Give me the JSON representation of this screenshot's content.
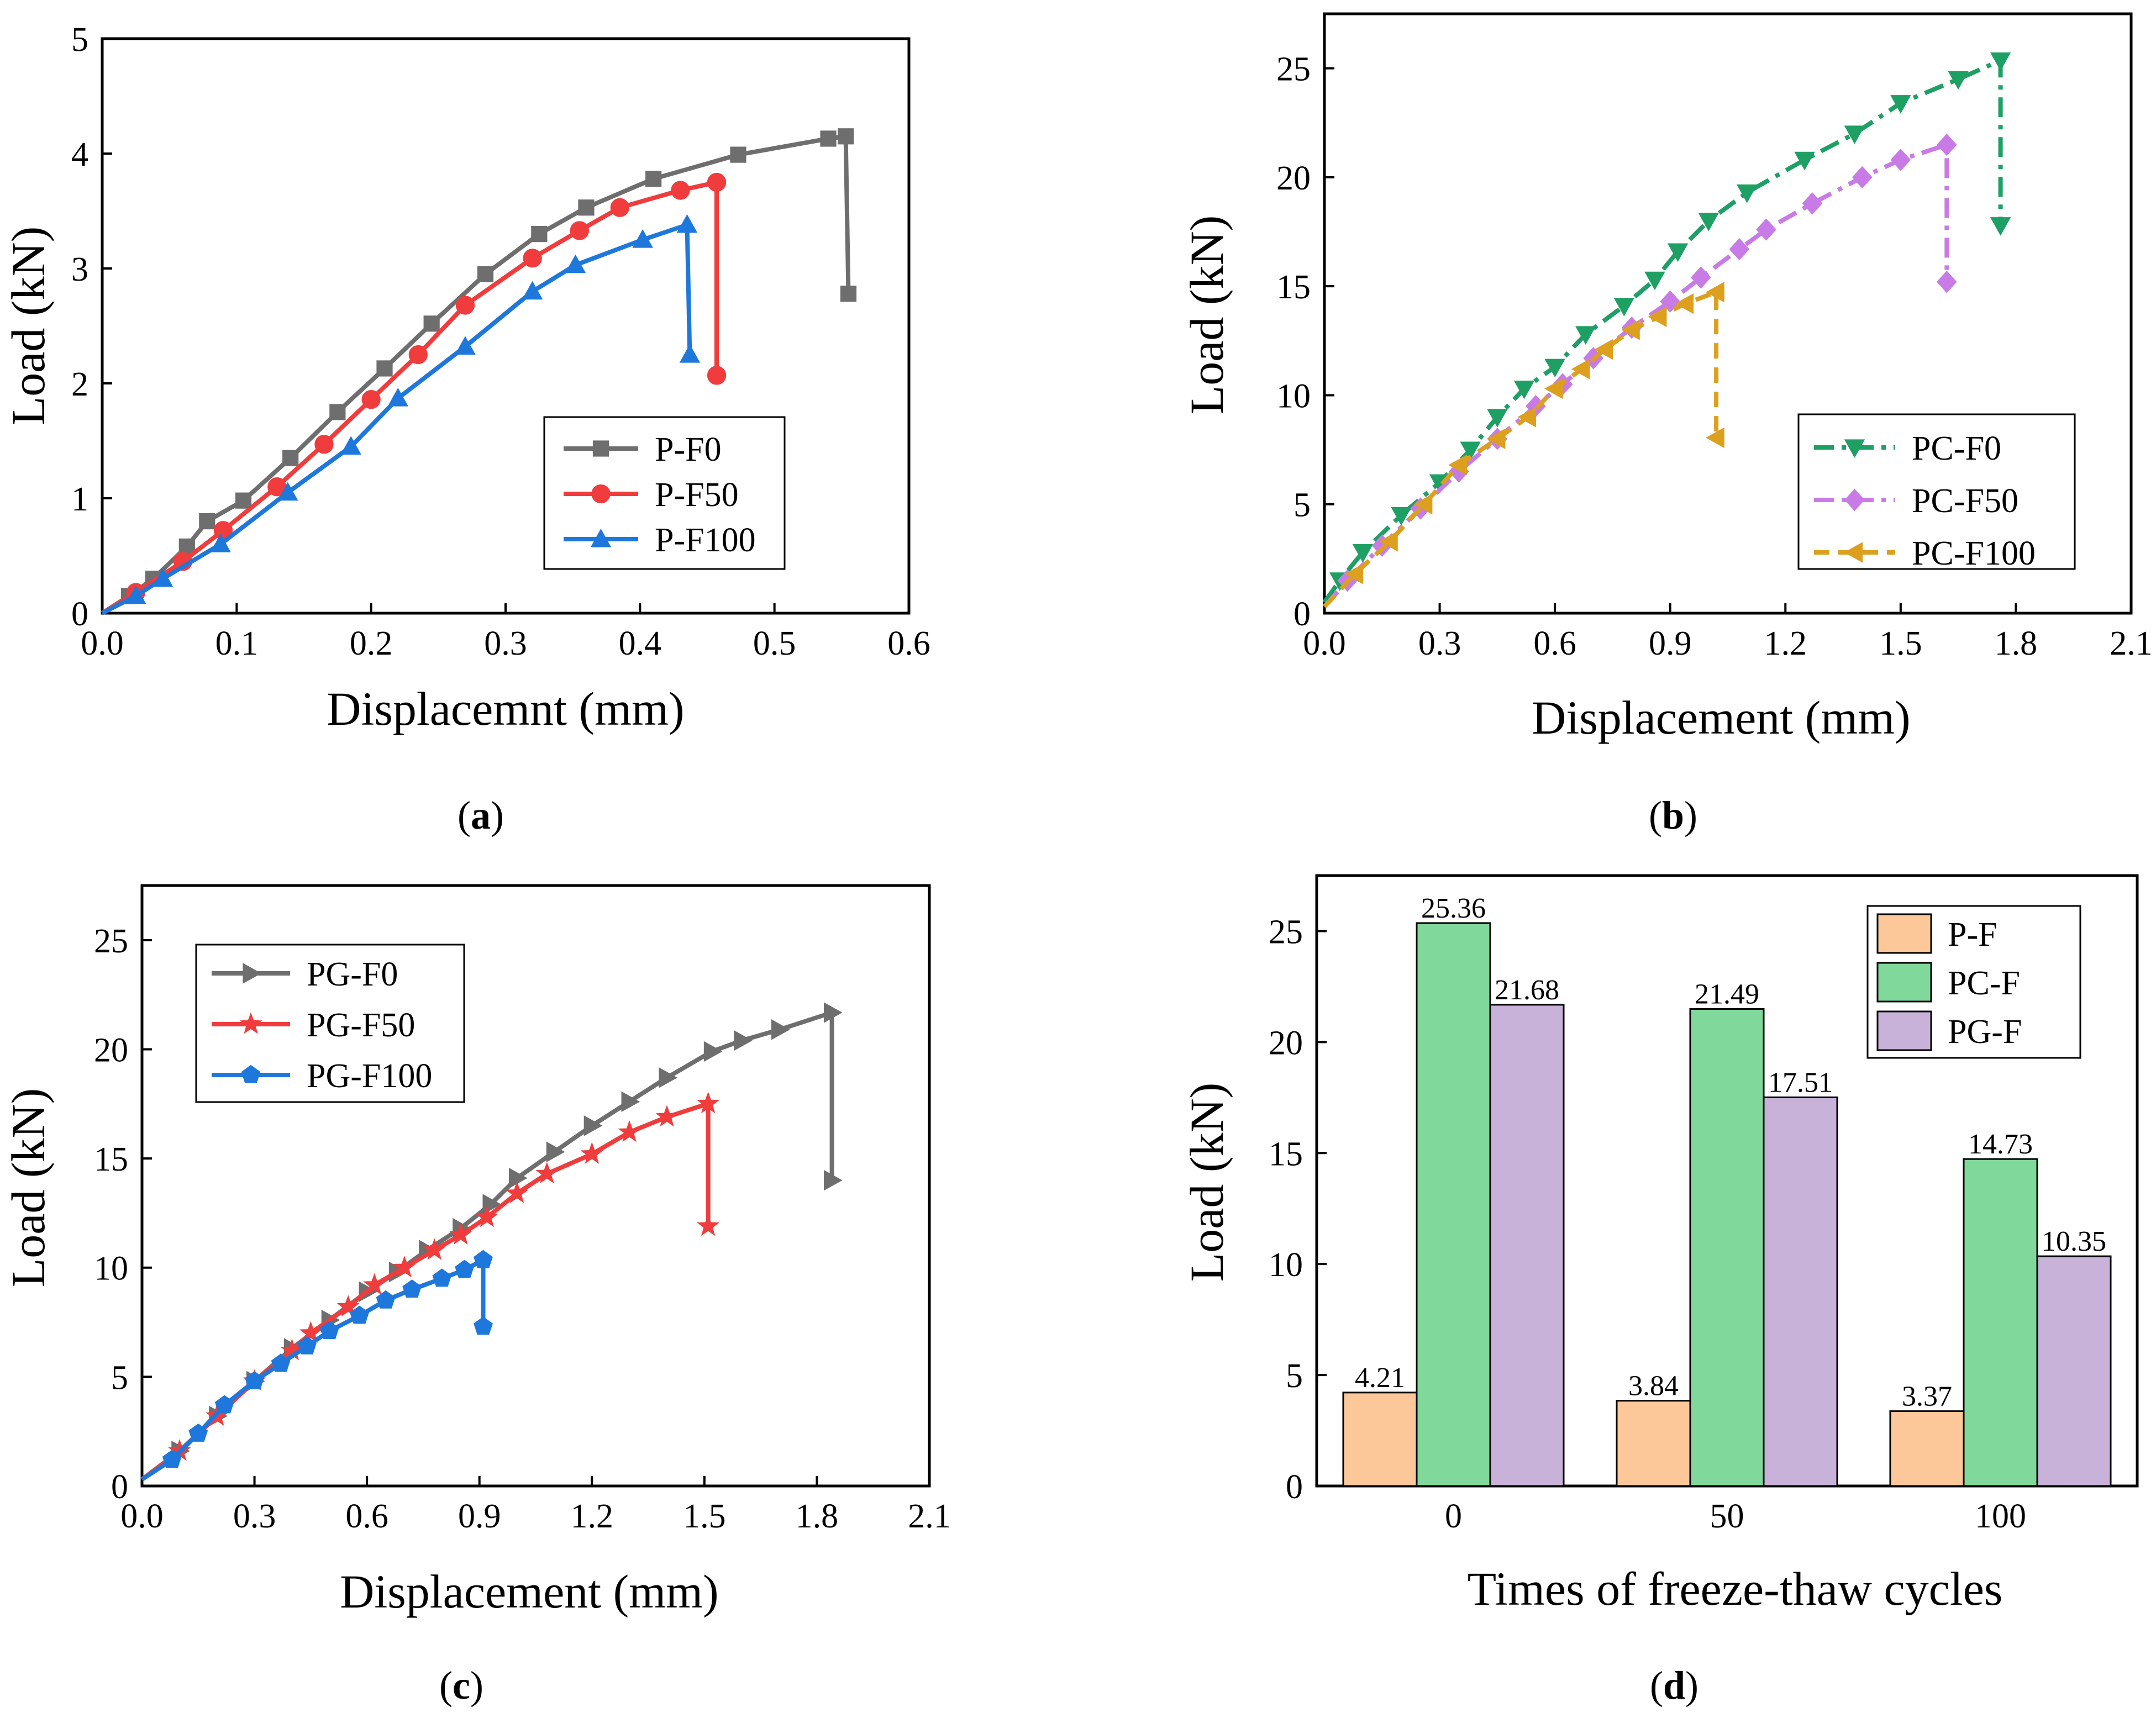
{
  "figure_labels": [
    "a",
    "b",
    "c",
    "d"
  ],
  "chart_data": [
    {
      "id": "a",
      "type": "line",
      "xlabel": "Displacemnt (mm)",
      "ylabel": "Load (kN)",
      "xlim": [
        0,
        0.6
      ],
      "ylim": [
        0,
        5
      ],
      "xticks": [
        0.0,
        0.1,
        0.2,
        0.3,
        0.4,
        0.5,
        0.6
      ],
      "yticks": [
        0,
        1,
        2,
        3,
        4,
        5
      ],
      "xtick_labels": [
        "0.0",
        "0.1",
        "0.2",
        "0.3",
        "0.4",
        "0.5",
        "0.6"
      ],
      "ytick_labels": [
        "0",
        "1",
        "2",
        "3",
        "4",
        "5"
      ],
      "legend_position": "bottom-right",
      "series": [
        {
          "name": "P-F0",
          "color": "#6e6e6e",
          "marker": "square",
          "dash": "solid",
          "points": [
            [
              0,
              0
            ],
            [
              0.02,
              0.15
            ],
            [
              0.038,
              0.3
            ],
            [
              0.063,
              0.58
            ],
            [
              0.078,
              0.8
            ],
            [
              0.105,
              0.98
            ],
            [
              0.14,
              1.35
            ],
            [
              0.175,
              1.75
            ],
            [
              0.21,
              2.13
            ],
            [
              0.245,
              2.52
            ],
            [
              0.285,
              2.95
            ],
            [
              0.325,
              3.3
            ],
            [
              0.36,
              3.53
            ],
            [
              0.41,
              3.78
            ],
            [
              0.473,
              3.99
            ],
            [
              0.54,
              4.13
            ],
            [
              0.553,
              4.15
            ],
            [
              0.555,
              2.78
            ]
          ]
        },
        {
          "name": "P-F50",
          "color": "#f03c3c",
          "marker": "circle",
          "dash": "solid",
          "points": [
            [
              0,
              0
            ],
            [
              0.025,
              0.18
            ],
            [
              0.06,
              0.45
            ],
            [
              0.09,
              0.72
            ],
            [
              0.13,
              1.1
            ],
            [
              0.165,
              1.47
            ],
            [
              0.2,
              1.86
            ],
            [
              0.235,
              2.25
            ],
            [
              0.27,
              2.68
            ],
            [
              0.32,
              3.09
            ],
            [
              0.355,
              3.33
            ],
            [
              0.385,
              3.53
            ],
            [
              0.43,
              3.68
            ],
            [
              0.457,
              3.75
            ],
            [
              0.457,
              2.07
            ]
          ]
        },
        {
          "name": "P-F100",
          "color": "#1e78dc",
          "marker": "triangle",
          "dash": "solid",
          "points": [
            [
              0,
              0
            ],
            [
              0.025,
              0.15
            ],
            [
              0.045,
              0.3
            ],
            [
              0.088,
              0.6
            ],
            [
              0.138,
              1.05
            ],
            [
              0.185,
              1.45
            ],
            [
              0.22,
              1.87
            ],
            [
              0.27,
              2.32
            ],
            [
              0.32,
              2.8
            ],
            [
              0.352,
              3.03
            ],
            [
              0.402,
              3.25
            ],
            [
              0.435,
              3.38
            ],
            [
              0.437,
              2.25
            ]
          ]
        }
      ]
    },
    {
      "id": "b",
      "type": "line",
      "xlabel": "Displacement (mm)",
      "ylabel": "Load (kN)",
      "xlim": [
        0,
        2.1
      ],
      "ylim": [
        0,
        27.5
      ],
      "xticks": [
        0.0,
        0.3,
        0.6,
        0.9,
        1.2,
        1.5,
        1.8,
        2.1
      ],
      "yticks": [
        0,
        5,
        10,
        15,
        20,
        25
      ],
      "xtick_labels": [
        "0.0",
        "0.3",
        "0.6",
        "0.9",
        "1.2",
        "1.5",
        "1.8",
        "2.1"
      ],
      "ytick_labels": [
        "0",
        "5",
        "10",
        "15",
        "20",
        "25"
      ],
      "legend_position": "bottom-right",
      "series": [
        {
          "name": "PC-F0",
          "color": "#1ea064",
          "marker": "triangle-down",
          "dash": "dashdot",
          "points": [
            [
              0,
              0.5
            ],
            [
              0.04,
              1.5
            ],
            [
              0.1,
              2.8
            ],
            [
              0.2,
              4.5
            ],
            [
              0.3,
              6
            ],
            [
              0.38,
              7.5
            ],
            [
              0.45,
              9
            ],
            [
              0.52,
              10.3
            ],
            [
              0.6,
              11.3
            ],
            [
              0.68,
              12.8
            ],
            [
              0.78,
              14.1
            ],
            [
              0.86,
              15.3
            ],
            [
              0.92,
              16.6
            ],
            [
              1.0,
              18
            ],
            [
              1.1,
              19.3
            ],
            [
              1.25,
              20.8
            ],
            [
              1.38,
              22
            ],
            [
              1.5,
              23.4
            ],
            [
              1.65,
              24.5
            ],
            [
              1.76,
              25.36
            ],
            [
              1.76,
              17.8
            ]
          ]
        },
        {
          "name": "PC-F50",
          "color": "#c87be6",
          "marker": "diamond",
          "dash": "dashdot",
          "points": [
            [
              0,
              0.3
            ],
            [
              0.06,
              1.5
            ],
            [
              0.15,
              3.1
            ],
            [
              0.25,
              4.8
            ],
            [
              0.35,
              6.5
            ],
            [
              0.45,
              8
            ],
            [
              0.55,
              9.5
            ],
            [
              0.62,
              10.5
            ],
            [
              0.7,
              11.7
            ],
            [
              0.8,
              13.1
            ],
            [
              0.9,
              14.3
            ],
            [
              0.98,
              15.4
            ],
            [
              1.08,
              16.7
            ],
            [
              1.15,
              17.6
            ],
            [
              1.27,
              18.8
            ],
            [
              1.4,
              20
            ],
            [
              1.5,
              20.8
            ],
            [
              1.62,
              21.49
            ],
            [
              1.62,
              15.2
            ]
          ]
        },
        {
          "name": "PC-F100",
          "color": "#dca01e",
          "marker": "triangle-left",
          "dash": "dash",
          "points": [
            [
              0,
              0.3
            ],
            [
              0.08,
              1.8
            ],
            [
              0.17,
              3.3
            ],
            [
              0.26,
              5
            ],
            [
              0.35,
              6.8
            ],
            [
              0.45,
              8
            ],
            [
              0.53,
              9
            ],
            [
              0.6,
              10.3
            ],
            [
              0.67,
              11.2
            ],
            [
              0.73,
              12.1
            ],
            [
              0.8,
              13
            ],
            [
              0.87,
              13.6
            ],
            [
              0.94,
              14.2
            ],
            [
              1.02,
              14.73
            ],
            [
              1.02,
              8.05
            ]
          ]
        }
      ]
    },
    {
      "id": "c",
      "type": "line",
      "xlabel": "Displacement (mm)",
      "ylabel": "Load (kN)",
      "xlim": [
        0,
        2.1
      ],
      "ylim": [
        0,
        27.5
      ],
      "xticks": [
        0.0,
        0.3,
        0.6,
        0.9,
        1.2,
        1.5,
        1.8,
        2.1
      ],
      "yticks": [
        0,
        5,
        10,
        15,
        20,
        25
      ],
      "xtick_labels": [
        "0.0",
        "0.3",
        "0.6",
        "0.9",
        "1.2",
        "1.5",
        "1.8",
        "2.1"
      ],
      "ytick_labels": [
        "0",
        "5",
        "10",
        "15",
        "20",
        "25"
      ],
      "legend_position": "top-left",
      "series": [
        {
          "name": "PG-F0",
          "color": "#6e6e6e",
          "marker": "triangle-right",
          "dash": "solid",
          "points": [
            [
              0,
              0.3
            ],
            [
              0.1,
              1.6
            ],
            [
              0.2,
              3.2
            ],
            [
              0.3,
              4.8
            ],
            [
              0.4,
              6.3
            ],
            [
              0.5,
              7.6
            ],
            [
              0.6,
              8.9
            ],
            [
              0.68,
              9.8
            ],
            [
              0.76,
              10.8
            ],
            [
              0.85,
              11.8
            ],
            [
              0.93,
              12.9
            ],
            [
              1.0,
              14.1
            ],
            [
              1.1,
              15.3
            ],
            [
              1.2,
              16.5
            ],
            [
              1.3,
              17.6
            ],
            [
              1.4,
              18.7
            ],
            [
              1.52,
              19.9
            ],
            [
              1.6,
              20.4
            ],
            [
              1.7,
              20.9
            ],
            [
              1.84,
              21.68
            ],
            [
              1.84,
              14
            ]
          ]
        },
        {
          "name": "PG-F50",
          "color": "#f03c3c",
          "marker": "star",
          "dash": "solid",
          "points": [
            [
              0,
              0.3
            ],
            [
              0.1,
              1.6
            ],
            [
              0.2,
              3.2
            ],
            [
              0.3,
              4.8
            ],
            [
              0.4,
              6.2
            ],
            [
              0.45,
              7
            ],
            [
              0.55,
              8.2
            ],
            [
              0.62,
              9.2
            ],
            [
              0.7,
              10
            ],
            [
              0.78,
              10.8
            ],
            [
              0.85,
              11.5
            ],
            [
              0.92,
              12.3
            ],
            [
              1.0,
              13.4
            ],
            [
              1.08,
              14.3
            ],
            [
              1.2,
              15.2
            ],
            [
              1.3,
              16.2
            ],
            [
              1.4,
              16.9
            ],
            [
              1.51,
              17.51
            ],
            [
              1.51,
              11.9
            ]
          ]
        },
        {
          "name": "PG-F100",
          "color": "#1e78dc",
          "marker": "pentagon",
          "dash": "solid",
          "points": [
            [
              0,
              0.3
            ],
            [
              0.08,
              1.2
            ],
            [
              0.15,
              2.4
            ],
            [
              0.22,
              3.7
            ],
            [
              0.3,
              4.8
            ],
            [
              0.37,
              5.6
            ],
            [
              0.44,
              6.4
            ],
            [
              0.5,
              7.1
            ],
            [
              0.58,
              7.8
            ],
            [
              0.65,
              8.5
            ],
            [
              0.72,
              9
            ],
            [
              0.8,
              9.5
            ],
            [
              0.86,
              9.9
            ],
            [
              0.91,
              10.35
            ],
            [
              0.91,
              7.3
            ]
          ]
        }
      ]
    },
    {
      "id": "d",
      "type": "bar",
      "xlabel": "Times of freeze-thaw cycles",
      "ylabel": "Load (kN)",
      "ylim": [
        0,
        27.5
      ],
      "yticks": [
        0,
        5,
        10,
        15,
        20,
        25
      ],
      "ytick_labels": [
        "0",
        "5",
        "10",
        "15",
        "20",
        "25"
      ],
      "categories": [
        "0",
        "50",
        "100"
      ],
      "legend_position": "top-right",
      "series": [
        {
          "name": "P-F",
          "color": "#fcc89a",
          "values": [
            4.21,
            3.84,
            3.37
          ],
          "labels": [
            "4.21",
            "3.84",
            "3.37"
          ]
        },
        {
          "name": "PC-F",
          "color": "#80d99b",
          "values": [
            25.36,
            21.49,
            14.73
          ],
          "labels": [
            "25.36",
            "21.49",
            "14.73"
          ]
        },
        {
          "name": "PG-F",
          "color": "#c8b2d9",
          "values": [
            21.68,
            17.51,
            10.35
          ],
          "labels": [
            "21.68",
            "17.51",
            "10.35"
          ]
        }
      ]
    }
  ]
}
